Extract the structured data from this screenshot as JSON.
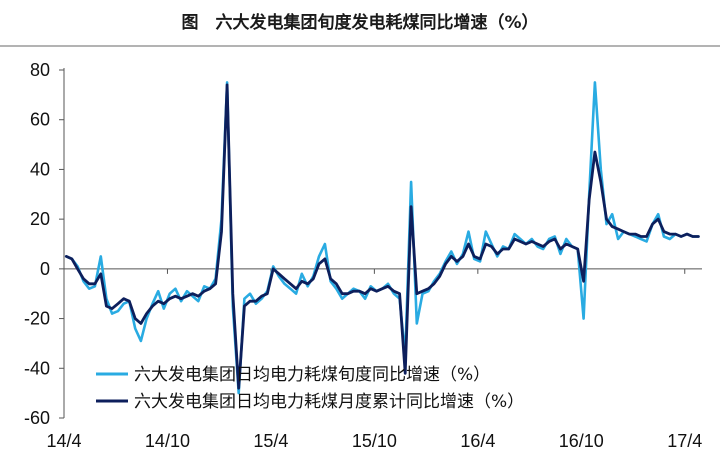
{
  "chart_data": {
    "type": "line",
    "title": "图　六大发电集团旬度发电耗煤同比增速（%）",
    "xlabel": "",
    "ylabel": "",
    "ylim": [
      -60,
      80
    ],
    "yticks": [
      80,
      60,
      40,
      20,
      0,
      -20,
      -40,
      -60
    ],
    "xticks": [
      "14/4",
      "14/10",
      "15/4",
      "15/10",
      "16/4",
      "16/10",
      "17/4"
    ],
    "xlim": [
      "2014-04",
      "2017-05"
    ],
    "grid": false,
    "legend_position": "bottom-left",
    "series": [
      {
        "name": "六大发电集团日均电力耗煤旬度同比增速（%）",
        "color": "#29abe2",
        "x": [
          "2014-04-05",
          "2014-04-15",
          "2014-04-25",
          "2014-05-05",
          "2014-05-15",
          "2014-05-25",
          "2014-06-05",
          "2014-06-15",
          "2014-06-25",
          "2014-07-05",
          "2014-07-15",
          "2014-07-25",
          "2014-08-05",
          "2014-08-15",
          "2014-08-25",
          "2014-09-05",
          "2014-09-15",
          "2014-09-25",
          "2014-10-05",
          "2014-10-15",
          "2014-10-25",
          "2014-11-05",
          "2014-11-15",
          "2014-11-25",
          "2014-12-05",
          "2014-12-15",
          "2014-12-25",
          "2015-01-05",
          "2015-01-15",
          "2015-01-25",
          "2015-02-05",
          "2015-02-15",
          "2015-02-25",
          "2015-03-05",
          "2015-03-15",
          "2015-03-25",
          "2015-04-05",
          "2015-04-15",
          "2015-04-25",
          "2015-05-05",
          "2015-05-15",
          "2015-05-25",
          "2015-06-05",
          "2015-06-15",
          "2015-06-25",
          "2015-07-05",
          "2015-07-15",
          "2015-07-25",
          "2015-08-05",
          "2015-08-15",
          "2015-08-25",
          "2015-09-05",
          "2015-09-15",
          "2015-09-25",
          "2015-10-05",
          "2015-10-15",
          "2015-10-25",
          "2015-11-05",
          "2015-11-15",
          "2015-11-25",
          "2015-12-05",
          "2015-12-15",
          "2015-12-25",
          "2016-01-05",
          "2016-01-15",
          "2016-01-25",
          "2016-02-05",
          "2016-02-15",
          "2016-02-25",
          "2016-03-05",
          "2016-03-15",
          "2016-03-25",
          "2016-04-05",
          "2016-04-15",
          "2016-04-25",
          "2016-05-05",
          "2016-05-15",
          "2016-05-25",
          "2016-06-05",
          "2016-06-15",
          "2016-06-25",
          "2016-07-05",
          "2016-07-15",
          "2016-07-25",
          "2016-08-05",
          "2016-08-15",
          "2016-08-25",
          "2016-09-05",
          "2016-09-15",
          "2016-09-25",
          "2016-10-05",
          "2016-10-15",
          "2016-10-25",
          "2016-11-05",
          "2016-11-15",
          "2016-11-25",
          "2016-12-05",
          "2016-12-15",
          "2016-12-25",
          "2017-01-05",
          "2017-01-15",
          "2017-01-25",
          "2017-02-05",
          "2017-02-15",
          "2017-02-25",
          "2017-03-05",
          "2017-03-15",
          "2017-03-25",
          "2017-04-05",
          "2017-04-15",
          "2017-04-25"
        ],
        "values": [
          5,
          4,
          1,
          -5,
          -8,
          -7,
          5,
          -12,
          -18,
          -17,
          -14,
          -13,
          -24,
          -29,
          -20,
          -14,
          -9,
          -16,
          -10,
          -8,
          -13,
          -9,
          -11,
          -13,
          -7,
          -8,
          -4,
          20,
          75,
          -15,
          -50,
          -12,
          -10,
          -14,
          -12,
          -9,
          1,
          -3,
          -6,
          -8,
          -10,
          -2,
          -7,
          -3,
          5,
          10,
          -5,
          -8,
          -12,
          -10,
          -8,
          -9,
          -12,
          -7,
          -9,
          -8,
          -6,
          -10,
          -12,
          -35,
          35,
          -22,
          -10,
          -9,
          -5,
          -2,
          3,
          7,
          2,
          6,
          15,
          4,
          3,
          15,
          10,
          5,
          9,
          8,
          14,
          12,
          10,
          12,
          9,
          8,
          12,
          13,
          6,
          12,
          9,
          8,
          -20,
          30,
          75,
          40,
          18,
          22,
          12,
          15,
          14,
          13,
          12,
          11,
          18,
          22,
          13,
          12,
          14,
          13,
          14,
          13,
          13
        ]
      },
      {
        "name": "六大发电集团日均电力耗煤月度累计同比增速（%）",
        "color": "#0d1f5c",
        "x": [
          "2014-04-05",
          "2014-04-15",
          "2014-04-25",
          "2014-05-05",
          "2014-05-15",
          "2014-05-25",
          "2014-06-05",
          "2014-06-15",
          "2014-06-25",
          "2014-07-05",
          "2014-07-15",
          "2014-07-25",
          "2014-08-05",
          "2014-08-15",
          "2014-08-25",
          "2014-09-05",
          "2014-09-15",
          "2014-09-25",
          "2014-10-05",
          "2014-10-15",
          "2014-10-25",
          "2014-11-05",
          "2014-11-15",
          "2014-11-25",
          "2014-12-05",
          "2014-12-15",
          "2014-12-25",
          "2015-01-05",
          "2015-01-15",
          "2015-01-25",
          "2015-02-05",
          "2015-02-15",
          "2015-02-25",
          "2015-03-05",
          "2015-03-15",
          "2015-03-25",
          "2015-04-05",
          "2015-04-15",
          "2015-04-25",
          "2015-05-05",
          "2015-05-15",
          "2015-05-25",
          "2015-06-05",
          "2015-06-15",
          "2015-06-25",
          "2015-07-05",
          "2015-07-15",
          "2015-07-25",
          "2015-08-05",
          "2015-08-15",
          "2015-08-25",
          "2015-09-05",
          "2015-09-15",
          "2015-09-25",
          "2015-10-05",
          "2015-10-15",
          "2015-10-25",
          "2015-11-05",
          "2015-11-15",
          "2015-11-25",
          "2015-12-05",
          "2015-12-15",
          "2015-12-25",
          "2016-01-05",
          "2016-01-15",
          "2016-01-25",
          "2016-02-05",
          "2016-02-15",
          "2016-02-25",
          "2016-03-05",
          "2016-03-15",
          "2016-03-25",
          "2016-04-05",
          "2016-04-15",
          "2016-04-25",
          "2016-05-05",
          "2016-05-15",
          "2016-05-25",
          "2016-06-05",
          "2016-06-15",
          "2016-06-25",
          "2016-07-05",
          "2016-07-15",
          "2016-07-25",
          "2016-08-05",
          "2016-08-15",
          "2016-08-25",
          "2016-09-05",
          "2016-09-15",
          "2016-09-25",
          "2016-10-05",
          "2016-10-15",
          "2016-10-25",
          "2016-11-05",
          "2016-11-15",
          "2016-11-25",
          "2016-12-05",
          "2016-12-15",
          "2016-12-25",
          "2017-01-05",
          "2017-01-15",
          "2017-01-25",
          "2017-02-05",
          "2017-02-15",
          "2017-02-25",
          "2017-03-05",
          "2017-03-15",
          "2017-03-25",
          "2017-04-05",
          "2017-04-15",
          "2017-04-25"
        ],
        "values": [
          5,
          4,
          0,
          -4,
          -6,
          -6,
          -2,
          -15,
          -16,
          -14,
          -12,
          -13,
          -20,
          -22,
          -18,
          -15,
          -13,
          -14,
          -12,
          -11,
          -12,
          -11,
          -10,
          -11,
          -9,
          -8,
          -6,
          15,
          74,
          -10,
          -48,
          -15,
          -13,
          -13,
          -11,
          -10,
          0,
          -2,
          -4,
          -6,
          -8,
          -5,
          -6,
          -4,
          2,
          4,
          -4,
          -6,
          -10,
          -10,
          -9,
          -9,
          -10,
          -8,
          -9,
          -8,
          -7,
          -9,
          -10,
          -42,
          25,
          -10,
          -9,
          -8,
          -6,
          -3,
          2,
          5,
          3,
          5,
          10,
          5,
          4,
          10,
          9,
          6,
          8,
          8,
          12,
          11,
          10,
          11,
          10,
          9,
          11,
          12,
          8,
          10,
          9,
          8,
          -5,
          28,
          47,
          35,
          20,
          17,
          16,
          15,
          14,
          14,
          13,
          13,
          18,
          20,
          15,
          14,
          14,
          13,
          14,
          13,
          13
        ]
      }
    ]
  }
}
